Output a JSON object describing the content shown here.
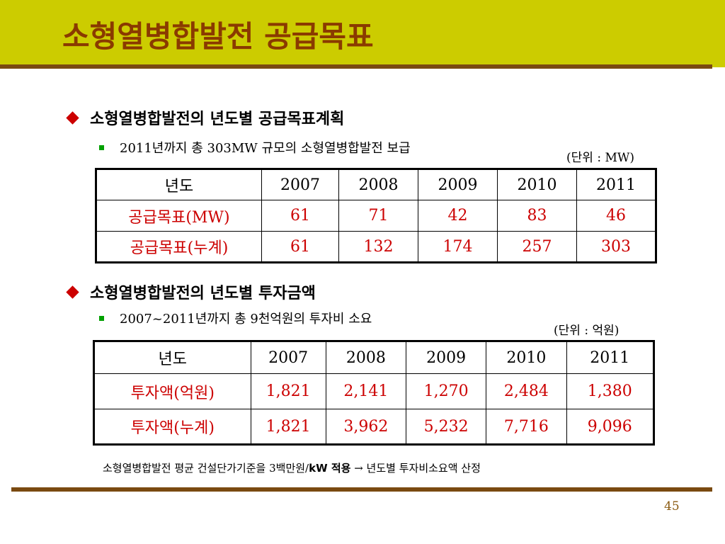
{
  "slide": {
    "title": "소형열병합발전 공급목표",
    "page_number": "45",
    "colors": {
      "title_bar": "#cccc00",
      "title_text": "#8a3a00",
      "rule": "#7a4a10",
      "bullet": "#cc0000",
      "sub_bullet": "#00a000",
      "highlight_text": "#cc0000"
    }
  },
  "section1": {
    "heading": "소형열병합발전의 년도별 공급목표계획",
    "sub": "2011년까지 총 303MW 규모의 소형열병합발전 보급",
    "unit": "(단위 : MW)",
    "table": {
      "header": [
        "년도",
        "2007",
        "2008",
        "2009",
        "2010",
        "2011"
      ],
      "rows": [
        [
          "공급목표(MW)",
          "61",
          "71",
          "42",
          "83",
          "46"
        ],
        [
          "공급목표(누계)",
          "61",
          "132",
          "174",
          "257",
          "303"
        ]
      ]
    }
  },
  "section2": {
    "heading": "소형열병합발전의 년도별 투자금액",
    "sub": "2007~2011년까지 총 9천억원의 투자비 소요",
    "unit": "(단위 : 억원)",
    "table": {
      "header": [
        "년도",
        "2007",
        "2008",
        "2009",
        "2010",
        "2011"
      ],
      "rows": [
        [
          "투자액(억원)",
          "1,821",
          "2,141",
          "1,270",
          "2,484",
          "1,380"
        ],
        [
          "투자액(누계)",
          "1,821",
          "3,962",
          "5,232",
          "7,716",
          "9,096"
        ]
      ]
    }
  },
  "note": {
    "prefix": "소형열병합발전 평균 건설단가기준을 3백만원/",
    "bold": "kW 적용",
    "suffix": " → 년도별 투자비소요액 산정"
  }
}
